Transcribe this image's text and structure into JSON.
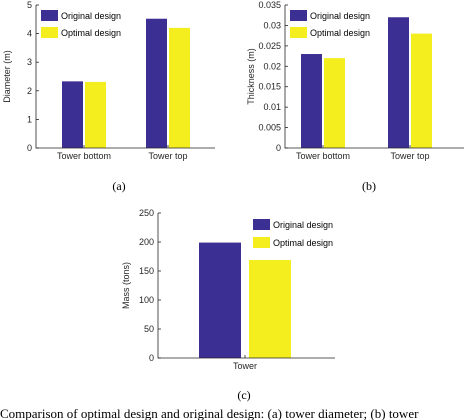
{
  "colors": {
    "original": "#3B2F94",
    "optimal": "#F4EE1E"
  },
  "caption_text": "Comparison of optimal design and original design: (a) tower diameter; (b) tower",
  "chart_data": [
    {
      "type": "bar",
      "panel_label": "(a)",
      "categories": [
        "Tower bottom",
        "Tower top"
      ],
      "series": [
        {
          "name": "Original design",
          "values": [
            2.33,
            4.52
          ]
        },
        {
          "name": "Optimal design",
          "values": [
            2.31,
            4.2
          ]
        }
      ],
      "xlabel": "",
      "ylabel": "Diameter (m)",
      "ylim": [
        0,
        5
      ],
      "yticks": [
        "0",
        "1",
        "2",
        "3",
        "4",
        "5"
      ],
      "legend": "top-left",
      "grid": false
    },
    {
      "type": "bar",
      "panel_label": "(b)",
      "categories": [
        "Tower bottom",
        "Tower top"
      ],
      "series": [
        {
          "name": "Original design",
          "values": [
            0.023,
            0.032
          ]
        },
        {
          "name": "Optimal design",
          "values": [
            0.022,
            0.028
          ]
        }
      ],
      "xlabel": "",
      "ylabel": "Thickness (m)",
      "ylim": [
        0,
        0.035
      ],
      "yticks": [
        "0",
        "0.005",
        "0.01",
        "0.015",
        "0.02",
        "0.025",
        "0.03",
        "0.035"
      ],
      "legend": "top-left",
      "grid": false
    },
    {
      "type": "bar",
      "panel_label": "(c)",
      "categories": [
        "Tower"
      ],
      "series": [
        {
          "name": "Original design",
          "values": [
            199
          ]
        },
        {
          "name": "Optimal design",
          "values": [
            169
          ]
        }
      ],
      "xlabel": "",
      "ylabel": "Mass (tons)",
      "ylim": [
        0,
        250
      ],
      "yticks": [
        "0",
        "50",
        "100",
        "150",
        "200",
        "250"
      ],
      "legend": "top-right",
      "grid": false
    }
  ]
}
